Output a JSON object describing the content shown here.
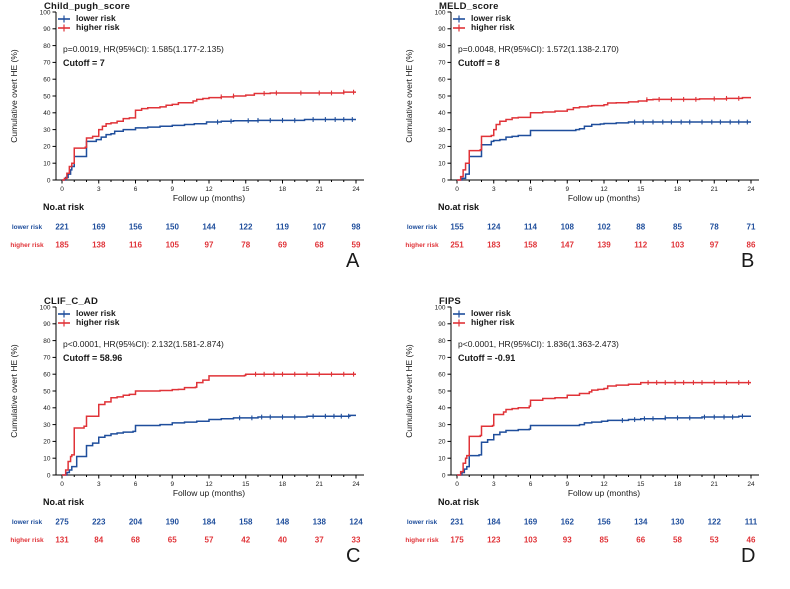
{
  "colors": {
    "lower": "#1f4e9c",
    "higher": "#e03338",
    "axis": "#000000",
    "tick_text": "#1a1a1a"
  },
  "legend": {
    "lower": "lower risk",
    "higher": "higher risk"
  },
  "risk_header": "No.at risk",
  "axes": {
    "xlabel": "Follow up (months)",
    "ylabel": "Cumulative overt HE (%)",
    "xlim": [
      0,
      24
    ],
    "ylim": [
      0,
      100
    ],
    "xticks": [
      0,
      3,
      6,
      9,
      12,
      15,
      18,
      21,
      24
    ],
    "yticks": [
      0,
      10,
      20,
      30,
      40,
      50,
      60,
      70,
      80,
      90,
      100
    ],
    "grid": false,
    "legend_position": "top-left"
  },
  "chart_data": [
    {
      "type": "line",
      "letter": "A",
      "title": "Child_pugh_score",
      "stats": "p=0.0019, HR(95%CI): 1.585(1.177-2.135)",
      "cutoff": "Cutoff = 7",
      "risk_columns": [
        0,
        3,
        6,
        9,
        12,
        15,
        18,
        21,
        24
      ],
      "series": [
        {
          "name": "lower risk",
          "color_key": "lower",
          "steps": [
            [
              0,
              0
            ],
            [
              0.3,
              1.5
            ],
            [
              0.5,
              3.5
            ],
            [
              0.7,
              6
            ],
            [
              0.8,
              8
            ],
            [
              1,
              14
            ],
            [
              2,
              23
            ],
            [
              2.8,
              24
            ],
            [
              3.2,
              25.5
            ],
            [
              3.6,
              27
            ],
            [
              4,
              27.5
            ],
            [
              4.3,
              29
            ],
            [
              5,
              30
            ],
            [
              6,
              31
            ],
            [
              7,
              31.5
            ],
            [
              8,
              32
            ],
            [
              9,
              32.5
            ],
            [
              10,
              33
            ],
            [
              10.8,
              33.5
            ],
            [
              11.8,
              34.5
            ],
            [
              13,
              35
            ],
            [
              14,
              35.3
            ],
            [
              16,
              35.5
            ],
            [
              19.8,
              36
            ]
          ],
          "censor_x": [
            12.7,
            13.8,
            15.2,
            16,
            17,
            18,
            19,
            20.5,
            21.5,
            22.3,
            23,
            23.7
          ],
          "at_risk": [
            221,
            169,
            156,
            150,
            144,
            122,
            119,
            107,
            98
          ]
        },
        {
          "name": "higher risk",
          "color_key": "higher",
          "steps": [
            [
              0,
              0
            ],
            [
              0.2,
              1
            ],
            [
              0.4,
              4
            ],
            [
              0.6,
              8
            ],
            [
              0.8,
              10
            ],
            [
              1,
              19
            ],
            [
              1.9,
              19.5
            ],
            [
              2,
              25
            ],
            [
              2.5,
              26
            ],
            [
              3,
              30
            ],
            [
              3.3,
              32
            ],
            [
              3.6,
              33.5
            ],
            [
              4,
              34
            ],
            [
              4.5,
              35
            ],
            [
              5,
              36.5
            ],
            [
              5.5,
              37
            ],
            [
              6,
              41.5
            ],
            [
              6.5,
              42.5
            ],
            [
              7,
              43
            ],
            [
              8,
              43.5
            ],
            [
              8.5,
              44.5
            ],
            [
              9,
              45
            ],
            [
              9.5,
              46
            ],
            [
              10.7,
              47
            ],
            [
              11,
              48
            ],
            [
              11.5,
              48.5
            ],
            [
              12,
              49
            ],
            [
              13,
              49.5
            ],
            [
              14,
              50
            ],
            [
              15,
              50.5
            ],
            [
              15.7,
              51.5
            ],
            [
              17,
              51.8
            ],
            [
              23,
              52.3
            ]
          ],
          "censor_x": [
            13,
            14,
            16.5,
            17.5,
            19.5,
            21,
            22,
            23,
            23.8
          ],
          "at_risk": [
            185,
            138,
            116,
            105,
            97,
            78,
            69,
            68,
            59
          ]
        }
      ]
    },
    {
      "type": "line",
      "letter": "B",
      "title": "MELD_score",
      "stats": "p=0.0048, HR(95%CI): 1.572(1.138-2.170)",
      "cutoff": "Cutoff = 8",
      "risk_columns": [
        0,
        3,
        6,
        9,
        12,
        15,
        18,
        21,
        24
      ],
      "series": [
        {
          "name": "lower risk",
          "color_key": "lower",
          "steps": [
            [
              0,
              0
            ],
            [
              0.4,
              1
            ],
            [
              0.7,
              3.5
            ],
            [
              1,
              14
            ],
            [
              2,
              21
            ],
            [
              2.8,
              23
            ],
            [
              3,
              23.5
            ],
            [
              3.5,
              24
            ],
            [
              4,
              25.5
            ],
            [
              4.5,
              26
            ],
            [
              5,
              26.5
            ],
            [
              6,
              29.5
            ],
            [
              9.7,
              30
            ],
            [
              10,
              30.5
            ],
            [
              10.4,
              32
            ],
            [
              11,
              33
            ],
            [
              11.7,
              33.3
            ],
            [
              12,
              33.6
            ],
            [
              13,
              34
            ],
            [
              14,
              34.5
            ]
          ],
          "censor_x": [
            14.5,
            15.2,
            16,
            16.8,
            17.5,
            18.3,
            19,
            20,
            20.8,
            21.5,
            22.3,
            23,
            23.7
          ],
          "at_risk": [
            155,
            124,
            114,
            108,
            102,
            88,
            85,
            78,
            71
          ]
        },
        {
          "name": "higher risk",
          "color_key": "higher",
          "steps": [
            [
              0,
              0
            ],
            [
              0.3,
              2
            ],
            [
              0.5,
              6
            ],
            [
              0.7,
              10
            ],
            [
              1,
              17.5
            ],
            [
              1.9,
              18
            ],
            [
              2,
              26
            ],
            [
              2.8,
              26.5
            ],
            [
              3,
              30
            ],
            [
              3.2,
              33
            ],
            [
              3.5,
              35
            ],
            [
              4,
              36
            ],
            [
              4.5,
              37
            ],
            [
              5,
              37.3
            ],
            [
              6,
              40
            ],
            [
              7,
              40.5
            ],
            [
              8,
              41
            ],
            [
              9,
              42
            ],
            [
              9.5,
              43
            ],
            [
              10,
              43.5
            ],
            [
              10.7,
              44
            ],
            [
              11,
              44.3
            ],
            [
              12,
              44.8
            ],
            [
              12.3,
              45.8
            ],
            [
              13,
              46
            ],
            [
              14,
              46.5
            ],
            [
              14.8,
              47
            ],
            [
              15.5,
              47.8
            ],
            [
              16,
              48
            ],
            [
              19.8,
              48.3
            ],
            [
              22,
              48.6
            ],
            [
              23.3,
              49
            ]
          ],
          "censor_x": [
            15.5,
            16.5,
            17.5,
            18.5,
            19.5,
            21,
            22,
            23
          ],
          "at_risk": [
            251,
            183,
            158,
            147,
            139,
            112,
            103,
            97,
            86
          ]
        }
      ]
    },
    {
      "type": "line",
      "letter": "C",
      "title": "CLIF_C_AD",
      "stats": "p<0.0001, HR(95%CI): 2.132(1.581-2.874)",
      "cutoff": "Cutoff = 58.96",
      "risk_columns": [
        0,
        3,
        6,
        9,
        12,
        15,
        18,
        21,
        24
      ],
      "series": [
        {
          "name": "lower risk",
          "color_key": "lower",
          "steps": [
            [
              0,
              0
            ],
            [
              0.4,
              1.5
            ],
            [
              0.6,
              3
            ],
            [
              0.8,
              5
            ],
            [
              1.2,
              11
            ],
            [
              2,
              17.5
            ],
            [
              2.5,
              19
            ],
            [
              3,
              22.5
            ],
            [
              3.5,
              23.5
            ],
            [
              4,
              24.5
            ],
            [
              4.5,
              25
            ],
            [
              5,
              25.5
            ],
            [
              5.8,
              26
            ],
            [
              6,
              29.5
            ],
            [
              8,
              30
            ],
            [
              9,
              31
            ],
            [
              10,
              31.5
            ],
            [
              11,
              32
            ],
            [
              12,
              33
            ],
            [
              13,
              33.5
            ],
            [
              14,
              34
            ],
            [
              16,
              34.5
            ],
            [
              20,
              35
            ],
            [
              23.5,
              35.5
            ]
          ],
          "censor_x": [
            14.5,
            15.5,
            16.3,
            17,
            18,
            19,
            20.5,
            21.5,
            22.2,
            22.8,
            23.4
          ],
          "at_risk": [
            275,
            223,
            204,
            190,
            184,
            158,
            148,
            138,
            124
          ]
        },
        {
          "name": "higher risk",
          "color_key": "higher",
          "steps": [
            [
              0,
              0
            ],
            [
              0.3,
              3
            ],
            [
              0.5,
              8
            ],
            [
              0.7,
              11
            ],
            [
              0.8,
              12
            ],
            [
              1,
              28
            ],
            [
              1.8,
              29
            ],
            [
              2,
              35
            ],
            [
              3,
              42
            ],
            [
              3.5,
              43.5
            ],
            [
              4,
              46
            ],
            [
              4.5,
              46.5
            ],
            [
              5,
              47.5
            ],
            [
              5.5,
              48
            ],
            [
              6,
              50
            ],
            [
              8,
              50.3
            ],
            [
              9,
              50.8
            ],
            [
              9.5,
              51
            ],
            [
              10,
              52
            ],
            [
              10.9,
              52.3
            ],
            [
              11,
              55
            ],
            [
              11.5,
              56.5
            ],
            [
              12,
              59
            ],
            [
              14.9,
              59.3
            ],
            [
              15,
              60
            ]
          ],
          "censor_x": [
            15.8,
            16.5,
            17.3,
            18,
            19,
            20,
            21,
            22,
            23,
            23.8
          ],
          "at_risk": [
            131,
            84,
            68,
            65,
            57,
            42,
            40,
            37,
            33
          ]
        }
      ]
    },
    {
      "type": "line",
      "letter": "D",
      "title": "FIPS",
      "stats": "p<0.0001, HR(95%CI): 1.836(1.363-2.473)",
      "cutoff": "Cutoff = -0.91",
      "risk_columns": [
        0,
        3,
        6,
        9,
        12,
        15,
        18,
        21,
        24
      ],
      "series": [
        {
          "name": "lower risk",
          "color_key": "lower",
          "steps": [
            [
              0,
              0
            ],
            [
              0.4,
              1.5
            ],
            [
              0.6,
              3.5
            ],
            [
              0.8,
              5
            ],
            [
              1,
              11.5
            ],
            [
              1.8,
              12
            ],
            [
              2,
              19.5
            ],
            [
              2.5,
              21
            ],
            [
              3,
              24
            ],
            [
              3.5,
              25.5
            ],
            [
              4,
              26.5
            ],
            [
              5,
              27
            ],
            [
              5.9,
              27.3
            ],
            [
              6,
              29.5
            ],
            [
              10,
              30
            ],
            [
              10.4,
              31
            ],
            [
              11,
              31.5
            ],
            [
              11.8,
              32
            ],
            [
              12.3,
              32.5
            ],
            [
              14,
              33
            ],
            [
              15,
              33.5
            ],
            [
              17,
              34
            ],
            [
              20,
              34.5
            ],
            [
              23,
              35
            ]
          ],
          "censor_x": [
            13.5,
            14.5,
            15.3,
            16,
            17,
            18,
            19,
            20.2,
            21,
            21.8,
            22.5,
            23.3
          ],
          "at_risk": [
            231,
            184,
            169,
            162,
            156,
            134,
            130,
            122,
            111
          ]
        },
        {
          "name": "higher risk",
          "color_key": "higher",
          "steps": [
            [
              0,
              0
            ],
            [
              0.3,
              2
            ],
            [
              0.5,
              7
            ],
            [
              0.7,
              10
            ],
            [
              0.8,
              11.5
            ],
            [
              1,
              23
            ],
            [
              1.9,
              23.5
            ],
            [
              2,
              29
            ],
            [
              2.9,
              29.5
            ],
            [
              3,
              36
            ],
            [
              3.8,
              37.5
            ],
            [
              4,
              39
            ],
            [
              4.5,
              39.5
            ],
            [
              5,
              40
            ],
            [
              5.9,
              41
            ],
            [
              6,
              44.5
            ],
            [
              7,
              45.5
            ],
            [
              8,
              46
            ],
            [
              9,
              47.5
            ],
            [
              10,
              48.5
            ],
            [
              10.8,
              49.5
            ],
            [
              11,
              50.5
            ],
            [
              11.5,
              51
            ],
            [
              12,
              51.5
            ],
            [
              12.3,
              53
            ],
            [
              13,
              53.5
            ],
            [
              14,
              54
            ],
            [
              15,
              55
            ]
          ],
          "censor_x": [
            15.6,
            16.3,
            17,
            17.8,
            18.5,
            19.3,
            20,
            21,
            22,
            23,
            23.8
          ],
          "at_risk": [
            175,
            123,
            103,
            93,
            85,
            66,
            58,
            53,
            46
          ]
        }
      ]
    }
  ]
}
